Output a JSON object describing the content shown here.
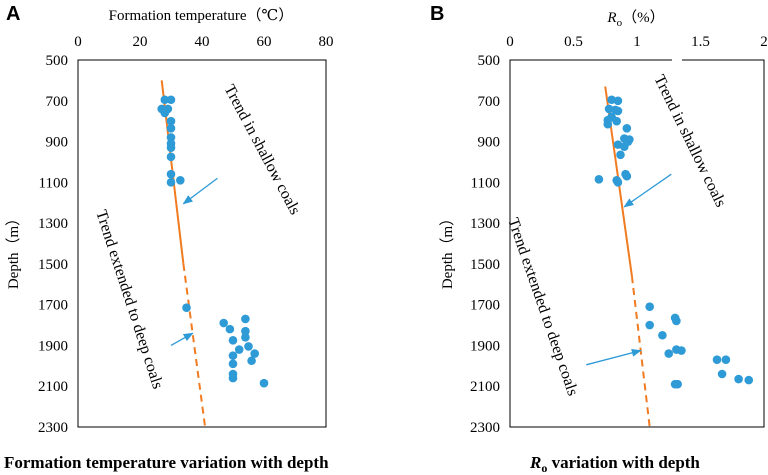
{
  "colors": {
    "points": "#2e9ad6",
    "trend": "#f07b21",
    "arrow": "#2e9ad6",
    "frame": "#000000"
  },
  "chart_data": [
    {
      "panel": "A",
      "type": "scatter",
      "title": "Formation temperature（℃）",
      "caption": "Formation temperature variation with depth",
      "xlabel": "Formation temperature（℃）",
      "ylabel": "Depth（m）",
      "xlim": [
        0,
        80
      ],
      "ylim": [
        500,
        2300
      ],
      "y_inverted": true,
      "x_ticks": [
        "0",
        "20",
        "40",
        "60",
        "80"
      ],
      "y_ticks": [
        "500",
        "700",
        "900",
        "1100",
        "1300",
        "1500",
        "1700",
        "1900",
        "2100",
        "2300"
      ],
      "points": [
        [
          28,
          695
        ],
        [
          30,
          695
        ],
        [
          27,
          740
        ],
        [
          29,
          740
        ],
        [
          28,
          760
        ],
        [
          30,
          800
        ],
        [
          30,
          835
        ],
        [
          30,
          880
        ],
        [
          30,
          910
        ],
        [
          30,
          930
        ],
        [
          30,
          975
        ],
        [
          30,
          1060
        ],
        [
          33,
          1090
        ],
        [
          30,
          1100
        ],
        [
          35,
          1715
        ],
        [
          47,
          1790
        ],
        [
          54,
          1770
        ],
        [
          49,
          1820
        ],
        [
          54,
          1830
        ],
        [
          54,
          1860
        ],
        [
          50,
          1875
        ],
        [
          55,
          1905
        ],
        [
          52,
          1920
        ],
        [
          57,
          1940
        ],
        [
          50,
          1950
        ],
        [
          50,
          1990
        ],
        [
          56,
          1975
        ],
        [
          50,
          2040
        ],
        [
          50,
          2060
        ],
        [
          60,
          2085
        ]
      ],
      "trend_solid": [
        [
          27,
          600
        ],
        [
          34,
          1500
        ]
      ],
      "trend_dashed": [
        [
          34,
          1500
        ],
        [
          41,
          2300
        ]
      ],
      "annotations": [
        {
          "text": "Trend in shallow coals",
          "arrow_from": [
            45,
            1080
          ],
          "arrow_to": [
            34,
            1205
          ]
        },
        {
          "text": "Trend extended to deep coals",
          "arrow_from": [
            30,
            1900
          ],
          "arrow_to": [
            37,
            1840
          ]
        }
      ]
    },
    {
      "panel": "B",
      "type": "scatter",
      "title": "Ro（%）",
      "caption": "Ro variation with depth",
      "xlabel": "Ro（%）",
      "ylabel": "Depth（m）",
      "xlim": [
        0,
        2
      ],
      "ylim": [
        500,
        2300
      ],
      "y_inverted": true,
      "x_ticks": [
        "0",
        "0.5",
        "1",
        "1.5",
        "2"
      ],
      "y_ticks": [
        "500",
        "700",
        "900",
        "1100",
        "1300",
        "1500",
        "1700",
        "1900",
        "2100",
        "2300"
      ],
      "points": [
        [
          0.8,
          695
        ],
        [
          0.85,
          700
        ],
        [
          0.78,
          740
        ],
        [
          0.83,
          745
        ],
        [
          0.85,
          750
        ],
        [
          0.8,
          780
        ],
        [
          0.77,
          795
        ],
        [
          0.84,
          800
        ],
        [
          0.77,
          815
        ],
        [
          0.92,
          835
        ],
        [
          0.9,
          885
        ],
        [
          0.94,
          890
        ],
        [
          0.93,
          900
        ],
        [
          0.85,
          915
        ],
        [
          0.9,
          925
        ],
        [
          0.87,
          965
        ],
        [
          0.91,
          1060
        ],
        [
          0.92,
          1070
        ],
        [
          0.7,
          1085
        ],
        [
          0.85,
          1100
        ],
        [
          0.84,
          1090
        ],
        [
          1.1,
          1710
        ],
        [
          1.3,
          1765
        ],
        [
          1.31,
          1780
        ],
        [
          1.1,
          1800
        ],
        [
          1.2,
          1850
        ],
        [
          1.31,
          1920
        ],
        [
          1.35,
          1925
        ],
        [
          1.25,
          1940
        ],
        [
          1.63,
          1970
        ],
        [
          1.7,
          1970
        ],
        [
          1.67,
          2040
        ],
        [
          1.8,
          2065
        ],
        [
          1.88,
          2070
        ],
        [
          1.3,
          2090
        ],
        [
          1.32,
          2090
        ]
      ],
      "trend_solid": [
        [
          0.75,
          630
        ],
        [
          0.96,
          1560
        ]
      ],
      "trend_dashed": [
        [
          0.96,
          1560
        ],
        [
          1.1,
          2300
        ]
      ],
      "annotations": [
        {
          "text": "Trend in shallow coals",
          "arrow_from": [
            1.27,
            1060
          ],
          "arrow_to": [
            0.9,
            1220
          ]
        },
        {
          "text": "Trend extended to deep coals",
          "arrow_from": [
            0.6,
            1995
          ],
          "arrow_to": [
            1.03,
            1925
          ]
        }
      ]
    }
  ]
}
